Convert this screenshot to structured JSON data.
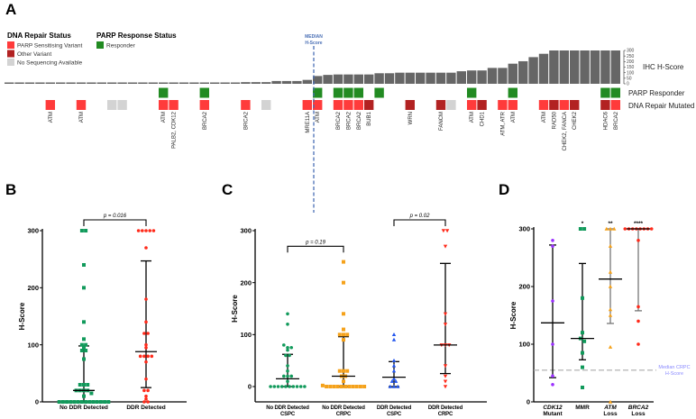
{
  "panel_labels": {
    "a": "A",
    "b": "B",
    "c": "C",
    "d": "D"
  },
  "colors": {
    "sensitising": "#ff3b3b",
    "other": "#b22222",
    "none": "#d3d3d3",
    "responder": "#228b22",
    "bar": "#666666",
    "median": "#4a6fb5"
  },
  "chart_data": [
    {
      "id": "A",
      "type": "bar",
      "title": "",
      "legend": {
        "dna_title": "DNA Repair Status",
        "dna_items": [
          "PARP Sensitising Variant",
          "Other Variant",
          "No Sequencing Available"
        ],
        "parp_title": "PARP Response Status",
        "parp_items": [
          "Responder"
        ]
      },
      "median_label": [
        "MEDIAN",
        "H-Score"
      ],
      "row_labels": {
        "bars": "IHC H-Score",
        "parp": "PARP Responder",
        "dna": "DNA Repair Mutated"
      },
      "ylim": [
        0,
        300
      ],
      "yticks": [
        "0",
        "50",
        "100",
        "150",
        "200",
        "250",
        "300"
      ],
      "h_scores": [
        0,
        0,
        0,
        0,
        0,
        0,
        0,
        0,
        0,
        0,
        0,
        0,
        0,
        0,
        0,
        5,
        5,
        10,
        10,
        10,
        10,
        10,
        10,
        15,
        15,
        15,
        25,
        25,
        25,
        35,
        70,
        80,
        84,
        84,
        84,
        84,
        95,
        95,
        100,
        100,
        100,
        100,
        100,
        100,
        113,
        120,
        120,
        143,
        143,
        181,
        203,
        240,
        270,
        300,
        300,
        300,
        300,
        300,
        300,
        300
      ],
      "status": {
        "4": "S",
        "7": "S",
        "10": "N",
        "11": "N",
        "15": "S",
        "16": "S",
        "19": "S",
        "23": "S",
        "25": "N",
        "29": "S",
        "30": "S",
        "32": "S",
        "33": "S",
        "34": "S",
        "35": "O",
        "39": "O",
        "42": "O",
        "43": "N",
        "45": "S",
        "46": "O",
        "48": "S",
        "49": "S",
        "52": "S",
        "53": "O",
        "54": "S",
        "55": "O",
        "58": "O",
        "59": "S"
      },
      "genes": {
        "4": "ATM",
        "7": "ATM",
        "15": "ATM",
        "16": "PALB2, CDK12",
        "19": "BRCA2",
        "23": "BRCA2",
        "29": "MRE11A",
        "30": "ATM",
        "32": "BRCA2",
        "33": "BRCA2",
        "34": "BRCA2",
        "35": "BUB1",
        "39": "WRN",
        "42": "FANCM",
        "45": "ATM",
        "46": "CHD1",
        "48": "ATM, ATR",
        "49": "ATM",
        "52": "ATM",
        "53": "RAD50",
        "54": "CHEK2, FANCA",
        "55": "CHEK2",
        "58": "HDAC6",
        "59": "BRCA2"
      },
      "responders": [
        15,
        19,
        30,
        32,
        33,
        34,
        36,
        45,
        49,
        58,
        59
      ]
    },
    {
      "id": "B",
      "type": "scatter",
      "ylabel": "H-Score",
      "ylim": [
        0,
        300
      ],
      "yticks": [
        "0",
        "100",
        "200",
        "300"
      ],
      "groups": [
        {
          "label": [
            "No DDR Detected"
          ],
          "shape": "square",
          "color": "#119a5b",
          "values": [
            300,
            300,
            240,
            200,
            140,
            110,
            100,
            100,
            95,
            90,
            90,
            75,
            30,
            30,
            30,
            20,
            20,
            20,
            20,
            15,
            10,
            0,
            0,
            0,
            0,
            0,
            0,
            0,
            0,
            0,
            0,
            0,
            0,
            0,
            0
          ],
          "median": 20,
          "low": 0,
          "high": 98
        },
        {
          "label": [
            "DDR Detected"
          ],
          "shape": "circle",
          "color": "#ff2a1a",
          "values": [
            300,
            300,
            300,
            300,
            300,
            270,
            180,
            140,
            120,
            120,
            100,
            95,
            80,
            80,
            80,
            80,
            70,
            40,
            20,
            20,
            10,
            5,
            0,
            0
          ],
          "median": 88,
          "low": 25,
          "high": 247
        }
      ],
      "comparisons": [
        {
          "from": 0,
          "to": 1,
          "text": "p = 0.016"
        }
      ]
    },
    {
      "id": "C",
      "type": "scatter",
      "ylabel": "H-Score",
      "ylim": [
        0,
        300
      ],
      "yticks": [
        "0",
        "100",
        "200",
        "300"
      ],
      "groups": [
        {
          "label": [
            "No DDR Detected",
            "CSPC"
          ],
          "shape": "circle",
          "color": "#119a5b",
          "values": [
            140,
            120,
            80,
            75,
            75,
            70,
            60,
            60,
            40,
            30,
            20,
            20,
            20,
            10,
            0,
            0,
            0,
            0,
            0,
            0,
            0,
            0,
            0,
            0
          ],
          "median": 15,
          "low": 0,
          "high": 62
        },
        {
          "label": [
            "No DDR Detected",
            "CRPC"
          ],
          "shape": "square",
          "color": "#f5a21b",
          "values": [
            240,
            200,
            140,
            110,
            100,
            100,
            100,
            90,
            30,
            30,
            30,
            20,
            20,
            10,
            2,
            0,
            0,
            0,
            0,
            0,
            0,
            0,
            0,
            0,
            0,
            0
          ],
          "median": 20,
          "low": 0,
          "high": 96
        },
        {
          "label": [
            "DDR Detected",
            "CSPC"
          ],
          "shape": "triangle",
          "color": "#2255ee",
          "values": [
            100,
            90,
            50,
            40,
            30,
            15,
            10,
            10,
            0,
            0,
            0
          ],
          "median": 18,
          "low": 0,
          "high": 48
        },
        {
          "label": [
            "DDR Detected",
            "CRPC"
          ],
          "shape": "triangle-down",
          "color": "#ff2a1a",
          "values": [
            300,
            300,
            270,
            140,
            120,
            80,
            80,
            80,
            40,
            20,
            10,
            0
          ],
          "median": 80,
          "low": 25,
          "high": 237
        }
      ],
      "comparisons": [
        {
          "from": 0,
          "to": 1,
          "text": "p = 0.19"
        },
        {
          "from": 2,
          "to": 3,
          "text": "p = 0.02"
        }
      ]
    },
    {
      "id": "D",
      "type": "scatter",
      "ylabel": "H-Score",
      "ylim": [
        0,
        300
      ],
      "yticks": [
        "0",
        "100",
        "200",
        "300"
      ],
      "reference_line": {
        "value": 55,
        "label": [
          "Median CRPC",
          "H-Score"
        ]
      },
      "groups": [
        {
          "label": [
            "CDK12",
            "Mutant"
          ],
          "italic_first": true,
          "shape": "circle",
          "color": "#9b30ff",
          "values": [
            280,
            270,
            175,
            100,
            45,
            30
          ],
          "median": 137,
          "low": 42,
          "high": 272,
          "stars": ""
        },
        {
          "label": [
            "MMR",
            ""
          ],
          "shape": "square",
          "color": "#119a5b",
          "values": [
            300,
            300,
            180,
            120,
            110,
            105,
            85,
            60,
            25
          ],
          "median": 110,
          "low": 73,
          "high": 240,
          "stars": "*"
        },
        {
          "label": [
            "ATM",
            "Loss"
          ],
          "italic_first": true,
          "shape": "triangle",
          "color": "#f5a21b",
          "values": [
            300,
            300,
            300,
            270,
            225,
            200,
            160,
            150,
            95,
            0
          ],
          "median": 213,
          "low": 136,
          "high": 300,
          "stars": "**"
        },
        {
          "label": [
            "BRCA2",
            "Loss"
          ],
          "italic_first": true,
          "shape": "circle",
          "color": "#ff2a1a",
          "values": [
            300,
            300,
            300,
            300,
            300,
            300,
            300,
            300,
            280,
            165,
            140,
            100
          ],
          "median": 300,
          "low": 158,
          "high": 300,
          "stars": "****"
        }
      ]
    }
  ]
}
